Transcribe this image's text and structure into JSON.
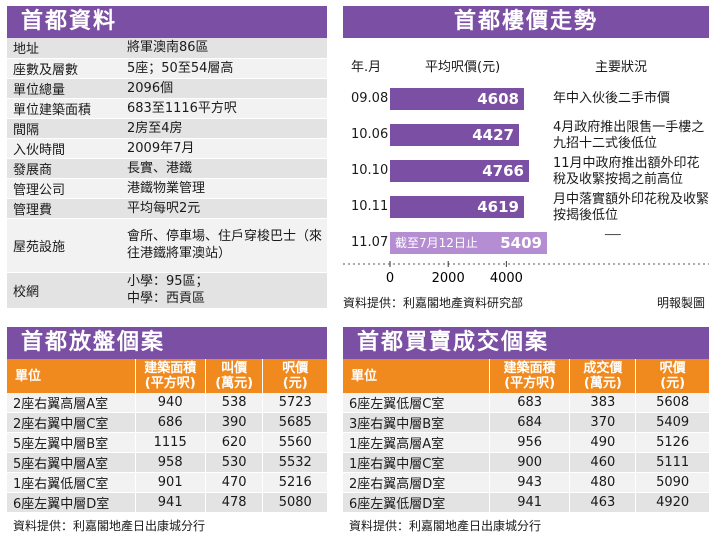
{
  "info_panel": {
    "title": "首都資料",
    "rows": [
      {
        "key": "地址",
        "value": "將軍澳南86區"
      },
      {
        "key": "座數及層數",
        "value": "5座；50至54層高"
      },
      {
        "key": "單位總量",
        "value": "2096個"
      },
      {
        "key": "單位建築面積",
        "value": "683至1116平方呎"
      },
      {
        "key": "間隔",
        "value": "2房至4房"
      },
      {
        "key": "入伙時間",
        "value": "2009年7月"
      },
      {
        "key": "發展商",
        "value": "長實、港鐵"
      },
      {
        "key": "管理公司",
        "value": "港鐵物業管理"
      },
      {
        "key": "管理費",
        "value": "平均每呎2元"
      },
      {
        "key": "屋苑設施",
        "value": "會所、停車場、住戶穿梭巴士（來往港鐵將軍澳站）"
      },
      {
        "key": "校網",
        "value": "小學：95區；\n中學：西貢區"
      }
    ]
  },
  "price_panel": {
    "title": "首都樓價走勢",
    "col_date": "年.月",
    "col_price": "平均呎價(元)",
    "col_note": "主要狀況",
    "source": "資料提供：利嘉閣地產資料研究部",
    "credit": "明報製圖"
  },
  "chart_data": {
    "type": "bar",
    "orientation": "horizontal",
    "categories": [
      "09.08",
      "10.06",
      "10.10",
      "10.11",
      "11.07"
    ],
    "values": [
      4608,
      4427,
      4766,
      4619,
      5409
    ],
    "last_prefix": "截至7月12日止",
    "notes": [
      "年中入伙後二手市價",
      "4月政府推出限售一手樓之九招十二式後低位",
      "11月中政府推出額外印花稅及收緊按揭之前高位",
      "月中落實額外印花稅及收緊按揭後低位",
      "──"
    ],
    "xlim": [
      0,
      5500
    ],
    "xticks": [
      "0",
      "2000",
      "4000"
    ],
    "colors": {
      "bar": "#7b4fa3",
      "last_bar": "#b48dd3"
    }
  },
  "listing_panel": {
    "title": "首都放盤個案",
    "headers": [
      "單位",
      "建築面積\n(平方呎)",
      "叫價\n(萬元)",
      "呎價\n(元)"
    ],
    "rows": [
      [
        "2座右翼高層A室",
        "940",
        "538",
        "5723"
      ],
      [
        "2座右翼中層C室",
        "686",
        "390",
        "5685"
      ],
      [
        "5座左翼中層B室",
        "1115",
        "620",
        "5560"
      ],
      [
        "5座右翼中層A室",
        "958",
        "530",
        "5532"
      ],
      [
        "1座右翼低層C室",
        "901",
        "470",
        "5216"
      ],
      [
        "6座左翼中層D室",
        "941",
        "478",
        "5080"
      ]
    ],
    "source": "資料提供：利嘉閣地產日出康城分行"
  },
  "deal_panel": {
    "title": "首都買賣成交個案",
    "headers": [
      "單位",
      "建築面積\n(平方呎)",
      "成交價\n(萬元)",
      "呎價\n(元)"
    ],
    "rows": [
      [
        "6座左翼低層C室",
        "683",
        "383",
        "5608"
      ],
      [
        "3座右翼中層B室",
        "684",
        "370",
        "5409"
      ],
      [
        "1座左翼高層A室",
        "956",
        "490",
        "5126"
      ],
      [
        "1座右翼中層C室",
        "900",
        "460",
        "5111"
      ],
      [
        "2座右翼高層D室",
        "943",
        "480",
        "5090"
      ],
      [
        "6座左翼低層D室",
        "941",
        "463",
        "4920"
      ]
    ],
    "source": "資料提供：利嘉閣地產日出康城分行"
  },
  "colors": {
    "header_purple": "#7b4fa3",
    "table_orange": "#f08a1e"
  }
}
